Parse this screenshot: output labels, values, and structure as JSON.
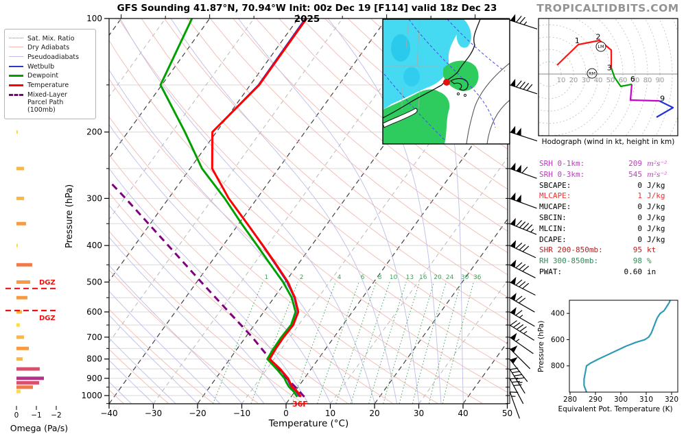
{
  "title": "GFS Sounding 41.87°N, 70.94°W Init: 00z Dec 19 [F114] valid 18z Dec 23 2025",
  "brand": "TROPICALTIDBITS.COM",
  "legend": {
    "items": [
      {
        "label": "Sat. Mix. Ratio",
        "color": "#3fa45c",
        "style": "dotted",
        "weight": 1.5
      },
      {
        "label": "Dry Adiabats",
        "color": "#f3b9b1",
        "style": "solid",
        "weight": 1.5
      },
      {
        "label": "Pseudoadiabats",
        "color": "#bdbde8",
        "style": "solid",
        "weight": 1.5
      },
      {
        "label": "Wetbulb",
        "color": "#3333cc",
        "style": "solid",
        "weight": 2
      },
      {
        "label": "Dewpoint",
        "color": "#00a000",
        "style": "solid",
        "weight": 3
      },
      {
        "label": "Temperature",
        "color": "#ff0000",
        "style": "solid",
        "weight": 3
      },
      {
        "label": "Mixed-Layer\nParcel Path (100mb)",
        "color": "#800080",
        "style": "dashed",
        "weight": 3
      }
    ]
  },
  "indices": {
    "rows": [
      {
        "label": "SRH 0-1km:",
        "value": "209",
        "unit": "m²s⁻²",
        "color": "#bb3fbb",
        "math_unit": true
      },
      {
        "label": "SRH 0-3km:",
        "value": "545",
        "unit": "m²s⁻²",
        "color": "#bb3fbb",
        "math_unit": true
      },
      {
        "label": "SBCAPE:",
        "value": "0",
        "unit": "J/kg",
        "color": "#000000",
        "math_unit": false
      },
      {
        "label": "MLCAPE:",
        "value": "1",
        "unit": "J/kg",
        "color": "#f03030",
        "math_unit": false
      },
      {
        "label": "MUCAPE:",
        "value": "0",
        "unit": "J/kg",
        "color": "#000000",
        "math_unit": false
      },
      {
        "label": "SBCIN:",
        "value": "0",
        "unit": "J/kg",
        "color": "#000000",
        "math_unit": false
      },
      {
        "label": "MLCIN:",
        "value": "0",
        "unit": "J/kg",
        "color": "#000000",
        "math_unit": false
      },
      {
        "label": "DCAPE:",
        "value": "0",
        "unit": "J/kg",
        "color": "#000000",
        "math_unit": false
      },
      {
        "label": "SHR 200-850mb:",
        "value": "95",
        "unit": "kt",
        "color": "#b22222",
        "math_unit": false
      },
      {
        "label": "RH 300-850mb:",
        "value": "98",
        "unit": "%",
        "color": "#2e8b57",
        "math_unit": false
      },
      {
        "label": "PWAT:",
        "value": "0.60",
        "unit": "in",
        "color": "#000000",
        "math_unit": false
      }
    ]
  },
  "map_inset": {
    "snow_color": "#45d9f2",
    "snow_dark": "#18bfe8",
    "rain_color": "#2ecc5e",
    "dot_color": "#e51010"
  },
  "chart_data": [
    {
      "type": "line",
      "name": "skewt",
      "title": "GFS Sounding 41.87°N, 70.94°W Init: 00z Dec 19 [F114] valid 18z Dec 23 2025",
      "xlabel": "Temperature (°C)",
      "ylabel": "Pressure (hPa)",
      "xlim": [
        -40,
        50
      ],
      "x_ticks": [
        -40,
        -30,
        -20,
        -10,
        0,
        10,
        20,
        30,
        40,
        50
      ],
      "y_ticks": [
        100,
        200,
        300,
        400,
        500,
        600,
        700,
        800,
        900,
        1000
      ],
      "p_top": 100,
      "p_bottom": 1050,
      "y_scale": "log",
      "skew": true,
      "mixing_ratio_lines": [
        1,
        2,
        4,
        6,
        8,
        10,
        13,
        16,
        20,
        24,
        30,
        36
      ],
      "surface_label": "36F",
      "dgz_levels_hpa": [
        520,
        595
      ],
      "series": [
        {
          "name": "Temperature",
          "color": "#ff0000",
          "points_p_T": [
            [
              1008,
              2.2
            ],
            [
              1000,
              1.8
            ],
            [
              975,
              0.5
            ],
            [
              950,
              -1.3
            ],
            [
              925,
              -2.5
            ],
            [
              900,
              -3.7
            ],
            [
              850,
              -7.0
            ],
            [
              800,
              -11.0
            ],
            [
              750,
              -11.3
            ],
            [
              700,
              -11.4
            ],
            [
              650,
              -11.2
            ],
            [
              600,
              -12.2
            ],
            [
              550,
              -15.3
            ],
            [
              500,
              -19.4
            ],
            [
              450,
              -24.8
            ],
            [
              400,
              -31.0
            ],
            [
              350,
              -38.1
            ],
            [
              300,
              -46.4
            ],
            [
              250,
              -55.0
            ],
            [
              200,
              -60.9
            ],
            [
              150,
              -58.0
            ],
            [
              100,
              -58.1
            ]
          ]
        },
        {
          "name": "Dewpoint",
          "color": "#00a000",
          "points_p_T": [
            [
              1008,
              1.4
            ],
            [
              1000,
              1.0
            ],
            [
              975,
              -0.3
            ],
            [
              950,
              -2.0
            ],
            [
              925,
              -3.3
            ],
            [
              900,
              -4.5
            ],
            [
              850,
              -7.8
            ],
            [
              800,
              -11.5
            ],
            [
              750,
              -11.8
            ],
            [
              700,
              -11.9
            ],
            [
              650,
              -11.7
            ],
            [
              600,
              -12.8
            ],
            [
              550,
              -16.0
            ],
            [
              500,
              -20.5
            ],
            [
              450,
              -26.1
            ],
            [
              400,
              -32.3
            ],
            [
              350,
              -39.4
            ],
            [
              300,
              -47.3
            ],
            [
              250,
              -57.3
            ],
            [
              200,
              -67.1
            ],
            [
              150,
              -80.3
            ],
            [
              100,
              -84.0
            ]
          ]
        },
        {
          "name": "Mixed-Layer Parcel Path (100mb)",
          "color": "#800080",
          "points_p_T": [
            [
              1008,
              3.0
            ],
            [
              950,
              -0.6
            ],
            [
              900,
              -4.0
            ],
            [
              850,
              -7.6
            ],
            [
              800,
              -10.9
            ],
            [
              700,
              -18.5
            ],
            [
              600,
              -27.9
            ],
            [
              500,
              -39.0
            ],
            [
              400,
              -52.4
            ],
            [
              300,
              -69.7
            ],
            [
              271,
              -76.0
            ]
          ]
        }
      ],
      "wind_barbs": [
        {
          "p": 101,
          "speed_kt": 75,
          "angle_deg": 18
        },
        {
          "p": 150,
          "speed_kt": 90,
          "angle_deg": 18
        },
        {
          "p": 200,
          "speed_kt": 100,
          "angle_deg": 18
        },
        {
          "p": 250,
          "speed_kt": 110,
          "angle_deg": 20
        },
        {
          "p": 300,
          "speed_kt": 100,
          "angle_deg": 20
        },
        {
          "p": 350,
          "speed_kt": 95,
          "angle_deg": 22
        },
        {
          "p": 400,
          "speed_kt": 80,
          "angle_deg": 25
        },
        {
          "p": 450,
          "speed_kt": 80,
          "angle_deg": 27
        },
        {
          "p": 500,
          "speed_kt": 80,
          "angle_deg": 27
        },
        {
          "p": 550,
          "speed_kt": 70,
          "angle_deg": 30
        },
        {
          "p": 600,
          "speed_kt": 65,
          "angle_deg": 30
        },
        {
          "p": 650,
          "speed_kt": 45,
          "angle_deg": 32
        },
        {
          "p": 700,
          "speed_kt": 55,
          "angle_deg": 35
        },
        {
          "p": 750,
          "speed_kt": 50,
          "angle_deg": 45
        },
        {
          "p": 800,
          "speed_kt": 50,
          "angle_deg": 52
        },
        {
          "p": 850,
          "speed_kt": 45,
          "angle_deg": 58
        },
        {
          "p": 900,
          "speed_kt": 30,
          "angle_deg": 62
        },
        {
          "p": 975,
          "speed_kt": 15,
          "angle_deg": 70
        }
      ]
    },
    {
      "type": "line",
      "name": "hodograph",
      "caption": "Hodograph (wind in kt, height in km)",
      "ring_step_kt": 10,
      "ring_labels": [
        10,
        20,
        30,
        40,
        50,
        60,
        70,
        80,
        90
      ],
      "traces": [
        {
          "name": "0-3km",
          "color": "#ff1111",
          "points_uv": [
            [
              6.7,
              7.2
            ],
            [
              23.9,
              23.9
            ],
            [
              41.1,
              27.2
            ],
            [
              50.6,
              19.4
            ],
            [
              50.6,
              5.0
            ]
          ]
        },
        {
          "name": "3-6km",
          "color": "#00a000",
          "points_uv": [
            [
              50.6,
              5.0
            ],
            [
              53.3,
              -2.8
            ],
            [
              58.3,
              -10.0
            ],
            [
              67.2,
              -8.3
            ]
          ]
        },
        {
          "name": "6-9km",
          "color": "#cc00cc",
          "points_uv": [
            [
              67.2,
              -8.3
            ],
            [
              66.1,
              -21.1
            ],
            [
              89.4,
              -21.7
            ]
          ]
        },
        {
          "name": "9km+",
          "color": "#2233dd",
          "points_uv": [
            [
              89.4,
              -21.7
            ],
            [
              100.6,
              -27.2
            ],
            [
              87.2,
              -35.0
            ]
          ]
        }
      ],
      "height_labels": [
        {
          "text": "1",
          "u": 23,
          "v": 25
        },
        {
          "text": "2",
          "u": 40,
          "v": 28
        },
        {
          "text": "3",
          "u": 49,
          "v": 3
        },
        {
          "text": "6",
          "u": 68,
          "v": -6
        },
        {
          "text": "9",
          "u": 92,
          "v": -22
        }
      ],
      "markers": [
        {
          "text": "RM",
          "u": 35,
          "v": 0.5
        },
        {
          "text": "LM",
          "u": 42.2,
          "v": 22.2
        }
      ]
    },
    {
      "type": "line",
      "name": "theta_e_profile",
      "xlabel": "Equivalent Pot. Temperature (K)",
      "ylabel": "Pressure (hPa)",
      "x_ticks": [
        280,
        290,
        300,
        310,
        320
      ],
      "y_ticks": [
        400,
        600,
        800
      ],
      "ylim": [
        300,
        1000
      ],
      "color": "#2e9ab5",
      "points_p_K": [
        [
          1000,
          286.5
        ],
        [
          950,
          285.5
        ],
        [
          900,
          285.5
        ],
        [
          850,
          286.0
        ],
        [
          800,
          286.5
        ],
        [
          780,
          288
        ],
        [
          750,
          291
        ],
        [
          700,
          296.5
        ],
        [
          650,
          302
        ],
        [
          620,
          306
        ],
        [
          600,
          309.5
        ],
        [
          580,
          311
        ],
        [
          550,
          312
        ],
        [
          500,
          313
        ],
        [
          450,
          314
        ],
        [
          430,
          314.5
        ],
        [
          400,
          315.5
        ],
        [
          380,
          317
        ],
        [
          350,
          318
        ],
        [
          320,
          319
        ],
        [
          300,
          319.5
        ]
      ]
    },
    {
      "type": "bar",
      "name": "omega",
      "xlabel": "Omega (Pa/s)",
      "x_ticks": [
        0,
        -1,
        -2
      ],
      "dgz_label": "DGZ",
      "bars_p_v": [
        [
          200,
          -0.07
        ],
        [
          250,
          -0.38
        ],
        [
          300,
          -0.38
        ],
        [
          350,
          -0.48
        ],
        [
          400,
          -0.07
        ],
        [
          450,
          -0.79
        ],
        [
          500,
          -0.69
        ],
        [
          550,
          -0.55
        ],
        [
          600,
          -0.28
        ],
        [
          650,
          -0.17
        ],
        [
          700,
          -0.38
        ],
        [
          750,
          -0.62
        ],
        [
          800,
          -0.31
        ],
        [
          850,
          -1.17
        ],
        [
          900,
          -1.38
        ],
        [
          925,
          -1.14
        ],
        [
          950,
          -0.83
        ],
        [
          975,
          -0.21
        ]
      ]
    }
  ]
}
